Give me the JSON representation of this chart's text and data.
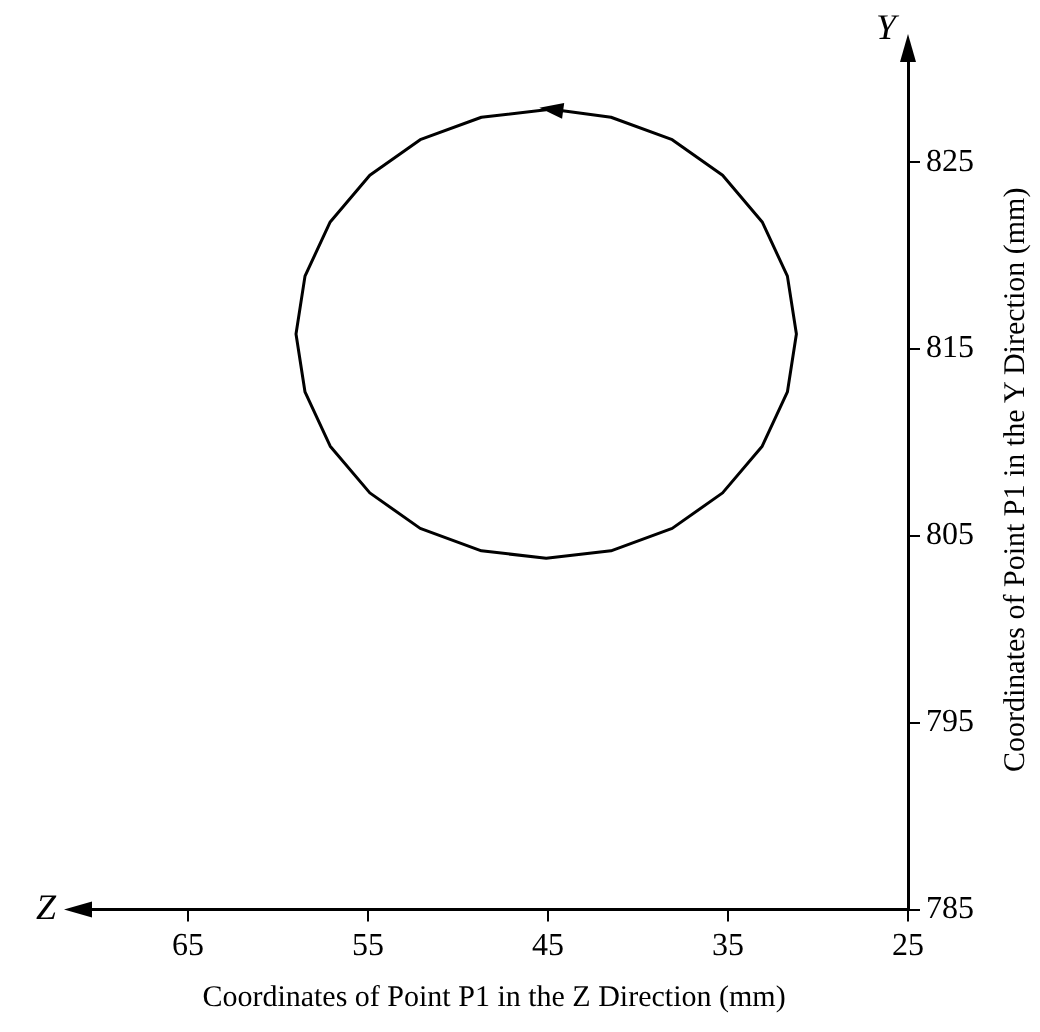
{
  "chart_data": {
    "type": "line",
    "xlabel": "Coordinates of Point P1 in the Z Direction (mm)",
    "ylabel": "Coordinates of Point P1 in the Y Direction (mm)",
    "annotations": [
      "Z",
      "Y"
    ],
    "xlim": [
      71,
      25
    ],
    "xticks": [
      65,
      55,
      45,
      35,
      25
    ],
    "ylim": [
      785,
      831
    ],
    "yticks": [
      785,
      795,
      805,
      815,
      825
    ],
    "grid": false,
    "legend": false,
    "marker": "none",
    "line_style": "solid",
    "series": [
      {
        "color": "#000000",
        "x": [
          45.1,
          48.7,
          52.1,
          54.9,
          57.1,
          58.5,
          59.0,
          58.5,
          57.1,
          54.9,
          52.1,
          48.7,
          45.1,
          41.5,
          38.1,
          35.3,
          33.1,
          31.7,
          31.2,
          31.7,
          33.1,
          35.3,
          38.1,
          41.5,
          44.6
        ],
        "values": [
          827.8,
          827.4,
          826.2,
          824.3,
          821.8,
          818.9,
          815.8,
          812.7,
          809.8,
          807.3,
          805.4,
          804.2,
          803.8,
          804.2,
          805.4,
          807.3,
          809.8,
          812.7,
          815.8,
          818.9,
          821.8,
          824.3,
          826.2,
          827.4,
          827.8
        ]
      }
    ]
  }
}
